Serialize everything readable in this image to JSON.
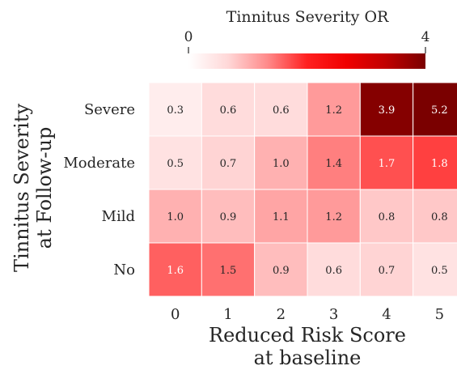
{
  "chart_data": {
    "type": "heatmap",
    "title": "",
    "xlabel": [
      "Reduced Risk Score",
      "at baseline"
    ],
    "ylabel": [
      "Tinnitus Severity",
      "at Follow-up"
    ],
    "x_categories": [
      "0",
      "1",
      "2",
      "3",
      "4",
      "5"
    ],
    "y_categories": [
      "Severe",
      "Moderate",
      "Mild",
      "No"
    ],
    "values": [
      [
        0.3,
        0.6,
        0.6,
        1.2,
        3.9,
        5.2
      ],
      [
        0.5,
        0.7,
        1.0,
        1.4,
        1.7,
        1.8
      ],
      [
        1.0,
        0.9,
        1.1,
        1.2,
        0.8,
        0.8
      ],
      [
        1.6,
        1.5,
        0.9,
        0.6,
        0.7,
        0.5
      ]
    ],
    "value_labels": [
      [
        "0.3",
        "0.6",
        "0.6",
        "1.2",
        "3.9",
        "5.2"
      ],
      [
        "0.5",
        "0.7",
        "1.0",
        "1.4",
        "1.7",
        "1.8"
      ],
      [
        "1.0",
        "0.9",
        "1.1",
        "1.2",
        "0.8",
        "0.8"
      ],
      [
        "1.6",
        "1.5",
        "0.9",
        "0.6",
        "0.7",
        "0.5"
      ]
    ],
    "colorbar": {
      "title": "Tinnitus Severity OR",
      "min": 0,
      "max": 4,
      "tick_labels": [
        "0",
        "4"
      ],
      "placement": "top"
    },
    "colormap": [
      "#ffffff",
      "#ffd8d8",
      "#ff8a8a",
      "#ff2020",
      "#f00000",
      "#c00000",
      "#7a0000"
    ],
    "grid": false
  }
}
